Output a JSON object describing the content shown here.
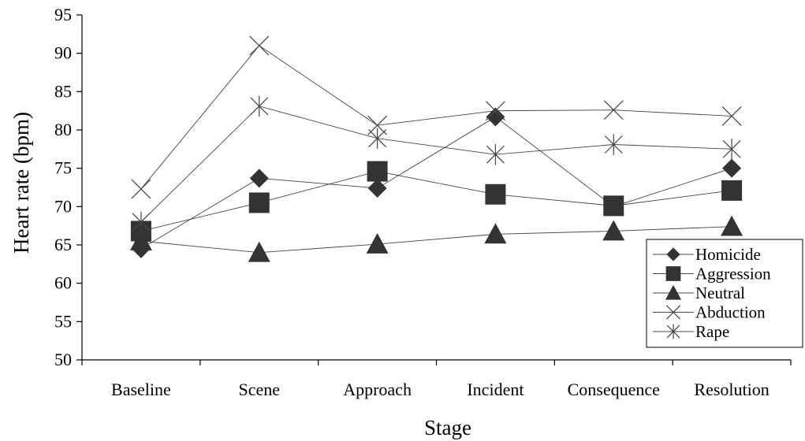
{
  "chart_data": {
    "type": "line",
    "title": "",
    "xlabel": "Stage",
    "ylabel": "Heart rate (bpm)",
    "ylim": [
      50,
      95
    ],
    "yticks": [
      50,
      55,
      60,
      65,
      70,
      75,
      80,
      85,
      90,
      95
    ],
    "grid": false,
    "legend_position": "bottom-right",
    "categories": [
      "Baseline",
      "Scene",
      "Approach",
      "Incident",
      "Consequence",
      "Resolution"
    ],
    "series": [
      {
        "name": "Homicide",
        "marker": "diamond",
        "values": [
          64.5,
          73.7,
          72.4,
          81.7,
          70.0,
          75.0
        ]
      },
      {
        "name": "Aggression",
        "marker": "square",
        "values": [
          66.8,
          70.5,
          74.6,
          71.6,
          70.1,
          72.1
        ]
      },
      {
        "name": "Neutral",
        "marker": "triangle",
        "values": [
          65.5,
          64.0,
          65.1,
          66.4,
          66.8,
          67.4
        ]
      },
      {
        "name": "Abduction",
        "marker": "x",
        "values": [
          72.3,
          91.0,
          80.6,
          82.5,
          82.6,
          81.8
        ]
      },
      {
        "name": "Rape",
        "marker": "asterisk",
        "values": [
          68.0,
          83.1,
          78.9,
          76.8,
          78.1,
          77.5
        ]
      }
    ]
  }
}
